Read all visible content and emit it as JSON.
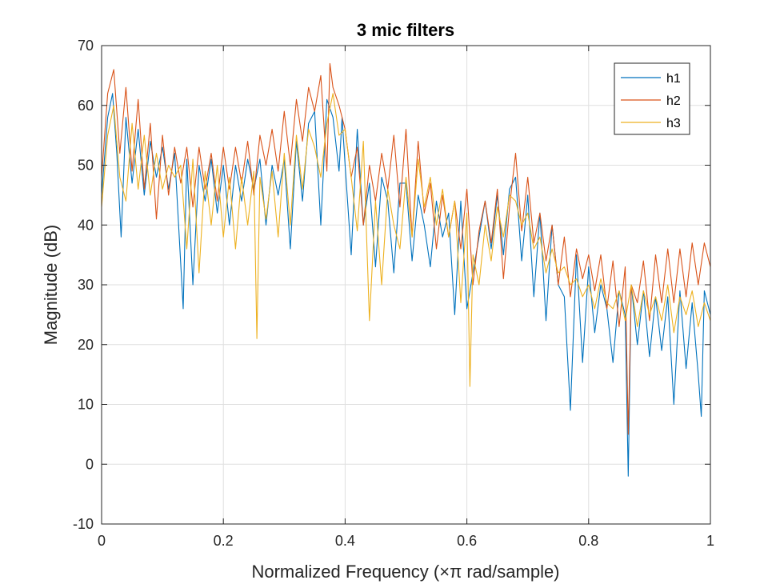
{
  "chart_data": {
    "type": "line",
    "title": "3 mic filters",
    "xlabel": "Normalized Frequency (×π rad/sample)",
    "ylabel": "Magnitude (dB)",
    "xlim": [
      0,
      1
    ],
    "ylim": [
      -10,
      70
    ],
    "xticks": [
      0,
      0.2,
      0.4,
      0.6,
      0.8,
      1
    ],
    "xtick_labels": [
      "0",
      "0.2",
      "0.4",
      "0.6",
      "0.8",
      "1"
    ],
    "yticks": [
      -10,
      0,
      10,
      20,
      30,
      40,
      50,
      60,
      70
    ],
    "ytick_labels": [
      "-10",
      "0",
      "10",
      "20",
      "30",
      "40",
      "50",
      "60",
      "70"
    ],
    "grid": true,
    "legend_position": "top-right",
    "series": [
      {
        "name": "h1",
        "color": "#0072BD",
        "x": [
          0,
          0.01,
          0.018,
          0.025,
          0.032,
          0.04,
          0.05,
          0.06,
          0.07,
          0.08,
          0.09,
          0.1,
          0.11,
          0.12,
          0.134,
          0.14,
          0.15,
          0.16,
          0.17,
          0.18,
          0.19,
          0.2,
          0.21,
          0.22,
          0.23,
          0.24,
          0.25,
          0.26,
          0.27,
          0.28,
          0.29,
          0.3,
          0.31,
          0.32,
          0.33,
          0.34,
          0.35,
          0.36,
          0.37,
          0.38,
          0.39,
          0.395,
          0.4,
          0.41,
          0.42,
          0.43,
          0.44,
          0.45,
          0.46,
          0.47,
          0.48,
          0.49,
          0.5,
          0.51,
          0.52,
          0.53,
          0.54,
          0.55,
          0.56,
          0.57,
          0.58,
          0.59,
          0.6,
          0.61,
          0.62,
          0.63,
          0.64,
          0.65,
          0.66,
          0.67,
          0.68,
          0.69,
          0.7,
          0.71,
          0.72,
          0.73,
          0.74,
          0.75,
          0.76,
          0.77,
          0.78,
          0.79,
          0.8,
          0.81,
          0.82,
          0.83,
          0.84,
          0.85,
          0.86,
          0.865,
          0.87,
          0.88,
          0.89,
          0.9,
          0.91,
          0.92,
          0.93,
          0.94,
          0.95,
          0.96,
          0.97,
          0.98,
          0.985,
          0.99,
          1
        ],
        "y": [
          45,
          58,
          62,
          52,
          38,
          58,
          47,
          56,
          45,
          54,
          48,
          53,
          46,
          52,
          26,
          51,
          30,
          50,
          44,
          51,
          42,
          50,
          40,
          50,
          44,
          51,
          46,
          51,
          40,
          50,
          45,
          51,
          36,
          54,
          44,
          57,
          59,
          40,
          61,
          58,
          49,
          58,
          50,
          35,
          56,
          40,
          47,
          33,
          48,
          44,
          32,
          47,
          47,
          34,
          45,
          40,
          33,
          44,
          38,
          42,
          25,
          44,
          26,
          32,
          38,
          44,
          36,
          45,
          35,
          46,
          48,
          34,
          45,
          28,
          42,
          24,
          40,
          30,
          28,
          9,
          35,
          17,
          33,
          22,
          30,
          26,
          17,
          29,
          25,
          -2,
          30,
          20,
          29,
          18,
          28,
          19,
          28,
          10,
          29,
          16,
          27,
          15,
          8,
          29,
          25
        ]
      },
      {
        "name": "h2",
        "color": "#D95319",
        "x": [
          0,
          0.01,
          0.02,
          0.03,
          0.04,
          0.05,
          0.06,
          0.07,
          0.08,
          0.09,
          0.1,
          0.11,
          0.12,
          0.13,
          0.14,
          0.15,
          0.16,
          0.17,
          0.18,
          0.19,
          0.2,
          0.21,
          0.22,
          0.23,
          0.24,
          0.25,
          0.26,
          0.27,
          0.28,
          0.29,
          0.3,
          0.31,
          0.32,
          0.33,
          0.34,
          0.35,
          0.36,
          0.37,
          0.375,
          0.38,
          0.39,
          0.4,
          0.41,
          0.42,
          0.43,
          0.44,
          0.45,
          0.46,
          0.47,
          0.48,
          0.49,
          0.5,
          0.51,
          0.52,
          0.53,
          0.54,
          0.55,
          0.56,
          0.57,
          0.58,
          0.59,
          0.6,
          0.61,
          0.62,
          0.63,
          0.64,
          0.65,
          0.66,
          0.67,
          0.68,
          0.69,
          0.7,
          0.71,
          0.72,
          0.73,
          0.74,
          0.75,
          0.76,
          0.77,
          0.78,
          0.79,
          0.8,
          0.81,
          0.82,
          0.83,
          0.84,
          0.85,
          0.86,
          0.865,
          0.87,
          0.88,
          0.89,
          0.9,
          0.91,
          0.92,
          0.93,
          0.94,
          0.95,
          0.96,
          0.97,
          0.98,
          0.99,
          1
        ],
        "y": [
          48,
          62,
          66,
          52,
          63,
          49,
          61,
          46,
          57,
          41,
          55,
          45,
          53,
          47,
          53,
          43,
          53,
          46,
          52,
          44,
          53,
          46,
          53,
          47,
          54,
          45,
          55,
          50,
          56,
          49,
          59,
          50,
          61,
          54,
          63,
          59,
          65,
          49,
          67,
          63,
          60,
          56,
          48,
          53,
          40,
          50,
          44,
          52,
          46,
          55,
          43,
          56,
          38,
          54,
          42,
          47,
          36,
          45,
          38,
          44,
          36,
          46,
          30,
          39,
          44,
          37,
          46,
          31,
          43,
          52,
          39,
          48,
          37,
          42,
          34,
          40,
          30,
          38,
          28,
          36,
          31,
          35,
          29,
          35,
          26,
          34,
          23,
          33,
          5,
          30,
          27,
          34,
          24,
          35,
          27,
          36,
          27,
          36,
          28,
          37,
          30,
          37,
          33
        ]
      },
      {
        "name": "h3",
        "color": "#EDB120",
        "x": [
          0,
          0.01,
          0.02,
          0.03,
          0.04,
          0.05,
          0.06,
          0.07,
          0.08,
          0.09,
          0.1,
          0.11,
          0.12,
          0.13,
          0.14,
          0.15,
          0.16,
          0.17,
          0.18,
          0.19,
          0.2,
          0.21,
          0.22,
          0.23,
          0.24,
          0.25,
          0.255,
          0.26,
          0.27,
          0.28,
          0.29,
          0.3,
          0.31,
          0.32,
          0.33,
          0.34,
          0.35,
          0.36,
          0.37,
          0.38,
          0.39,
          0.4,
          0.41,
          0.42,
          0.43,
          0.44,
          0.45,
          0.46,
          0.47,
          0.48,
          0.49,
          0.5,
          0.51,
          0.52,
          0.53,
          0.54,
          0.55,
          0.56,
          0.57,
          0.58,
          0.59,
          0.6,
          0.605,
          0.61,
          0.62,
          0.63,
          0.64,
          0.65,
          0.66,
          0.67,
          0.68,
          0.69,
          0.7,
          0.71,
          0.72,
          0.73,
          0.74,
          0.75,
          0.76,
          0.77,
          0.78,
          0.79,
          0.8,
          0.81,
          0.82,
          0.83,
          0.84,
          0.85,
          0.86,
          0.87,
          0.88,
          0.89,
          0.9,
          0.91,
          0.92,
          0.93,
          0.94,
          0.95,
          0.96,
          0.97,
          0.98,
          0.99,
          1
        ],
        "y": [
          43,
          55,
          60,
          48,
          44,
          57,
          46,
          55,
          45,
          52,
          46,
          50,
          48,
          50,
          36,
          51,
          32,
          49,
          40,
          50,
          38,
          48,
          36,
          48,
          40,
          49,
          21,
          48,
          41,
          49,
          38,
          52,
          40,
          55,
          46,
          56,
          53,
          48,
          57,
          62,
          55,
          56,
          48,
          39,
          54,
          24,
          44,
          30,
          46,
          40,
          36,
          48,
          38,
          51,
          43,
          48,
          40,
          46,
          38,
          44,
          27,
          42,
          13,
          35,
          30,
          40,
          34,
          43,
          38,
          45,
          44,
          40,
          42,
          36,
          38,
          32,
          36,
          32,
          33,
          30,
          31,
          28,
          30,
          26,
          31,
          27,
          26,
          29,
          24,
          30,
          23,
          29,
          25,
          28,
          24,
          30,
          22,
          28,
          25,
          29,
          23,
          27,
          24
        ]
      }
    ]
  }
}
